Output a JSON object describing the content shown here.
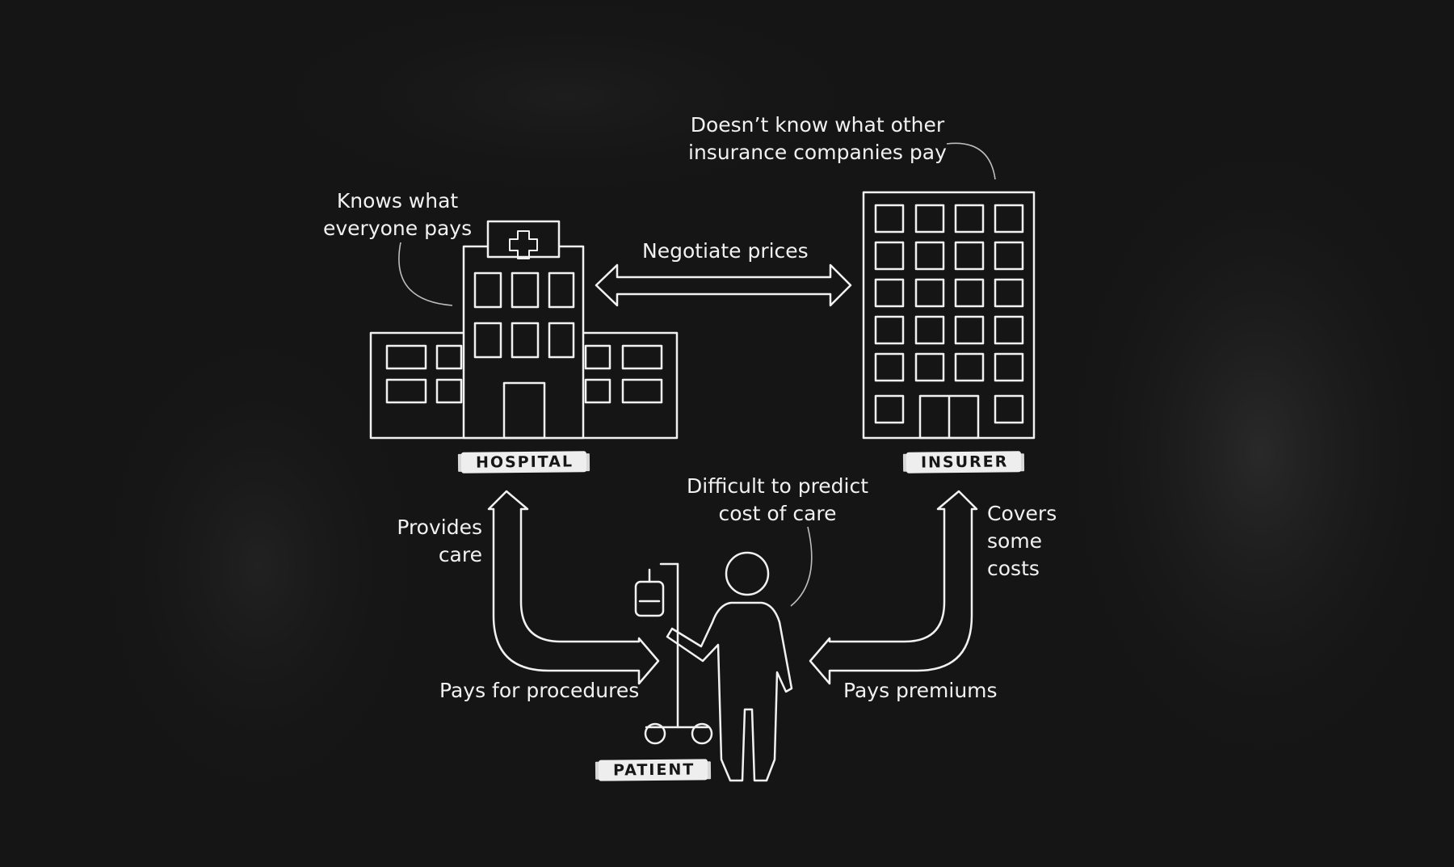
{
  "colors": {
    "board": "#151515",
    "chalk": "#f1f1f1",
    "label_bg": "#eeeeee",
    "label_text": "#161616"
  },
  "nodes": {
    "hospital": {
      "label": "HOSPITAL",
      "icon": "hospital-building-icon",
      "note_lines": [
        "Knows what",
        "everyone pays"
      ]
    },
    "insurer": {
      "label": "INSURER",
      "icon": "office-tower-icon",
      "note_lines": [
        "Doesn’t know what other",
        "insurance companies pay"
      ]
    },
    "patient": {
      "label": "PATIENT",
      "icon": "patient-with-iv-drip-icon",
      "note_lines": [
        "Difficult to predict",
        "cost of care"
      ]
    }
  },
  "edges": {
    "negotiate": {
      "label": "Negotiate prices"
    },
    "provides_care": {
      "label_lines": [
        "Provides",
        "care"
      ]
    },
    "pays_procedures": {
      "label": "Pays for procedures"
    },
    "covers_costs": {
      "label_lines": [
        "Covers",
        "some",
        "costs"
      ]
    },
    "pays_premiums": {
      "label": "Pays premiums"
    }
  }
}
